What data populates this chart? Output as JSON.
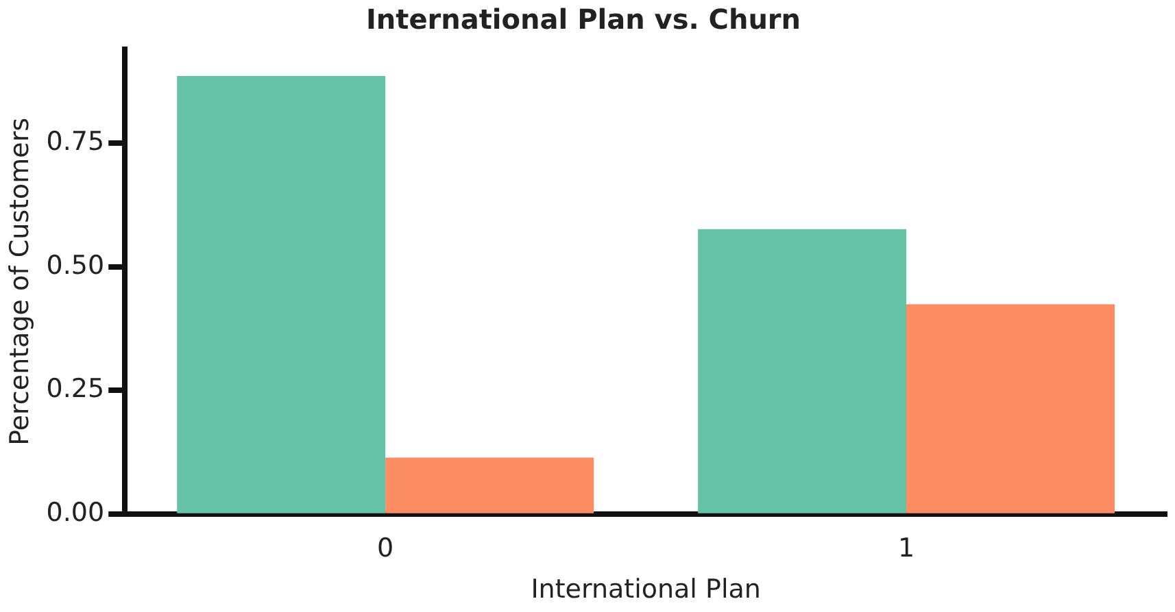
{
  "chart_data": {
    "type": "bar",
    "title": "International Plan vs. Churn",
    "xlabel": "International Plan",
    "ylabel": "Percentage of Customers",
    "categories": [
      "0",
      "1"
    ],
    "series": [
      {
        "color": "#66c2a5",
        "values": [
          0.886,
          0.576
        ]
      },
      {
        "color": "#fc8d62",
        "values": [
          0.114,
          0.424
        ]
      }
    ],
    "ylim": [
      0,
      0.94
    ],
    "yticks": [
      {
        "value": 0,
        "label": "0.00"
      },
      {
        "value": 0.25,
        "label": "0.25"
      },
      {
        "value": 0.5,
        "label": "0.50"
      },
      {
        "value": 0.75,
        "label": "0.75"
      }
    ],
    "grid": false,
    "legend": false
  }
}
